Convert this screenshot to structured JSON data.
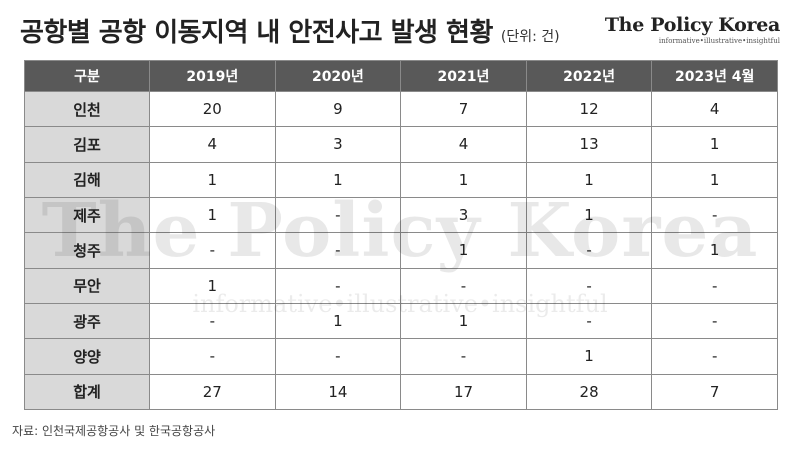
{
  "header": {
    "title": "공항별 공항 이동지역 내 안전사고 발생 현황",
    "unit": "(단위: 건)"
  },
  "brand": {
    "name": "The Policy Korea",
    "tagline": "informative•illustrative•insightful"
  },
  "watermark": {
    "name": "The Policy Korea",
    "tagline": "informative•illustrative•insightful"
  },
  "source": "자료: 인천국제공항공사 및 한국공항공사",
  "chart_data": {
    "type": "table",
    "title": "공항별 공항 이동지역 내 안전사고 발생 현황",
    "unit": "(단위: 건)",
    "columns": [
      "구분",
      "2019년",
      "2020년",
      "2021년",
      "2022년",
      "2023년 4월"
    ],
    "rows": [
      {
        "label": "인천",
        "values": [
          "20",
          "9",
          "7",
          "12",
          "4"
        ]
      },
      {
        "label": "김포",
        "values": [
          "4",
          "3",
          "4",
          "13",
          "1"
        ]
      },
      {
        "label": "김해",
        "values": [
          "1",
          "1",
          "1",
          "1",
          "1"
        ]
      },
      {
        "label": "제주",
        "values": [
          "1",
          "-",
          "3",
          "1",
          "-"
        ]
      },
      {
        "label": "청주",
        "values": [
          "-",
          "-",
          "1",
          "-",
          "1"
        ]
      },
      {
        "label": "무안",
        "values": [
          "1",
          "-",
          "-",
          "-",
          "-"
        ]
      },
      {
        "label": "광주",
        "values": [
          "-",
          "1",
          "1",
          "-",
          "-"
        ]
      },
      {
        "label": "양양",
        "values": [
          "-",
          "-",
          "-",
          "1",
          "-"
        ]
      },
      {
        "label": "합계",
        "values": [
          "27",
          "14",
          "17",
          "28",
          "7"
        ]
      }
    ]
  }
}
